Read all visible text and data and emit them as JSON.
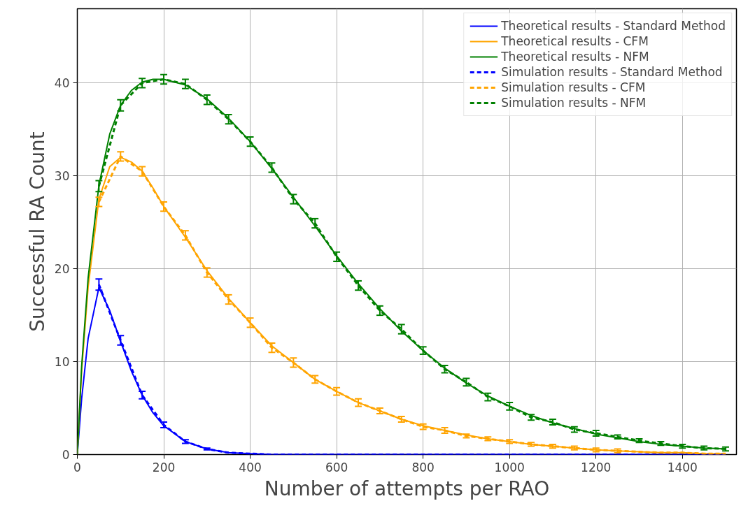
{
  "chart_data": {
    "type": "line",
    "xlabel": "Number of attempts per RAO",
    "ylabel": "Successful RA Count",
    "xlim": [
      0,
      1525
    ],
    "ylim": [
      0,
      48
    ],
    "xticks": [
      0,
      200,
      400,
      600,
      800,
      1000,
      1200,
      1400
    ],
    "yticks": [
      0,
      10,
      20,
      30,
      40
    ],
    "grid": true,
    "legend": "top right",
    "series": [
      {
        "name": "Theoretical results - Standard Method",
        "color": "#0000ff",
        "line_style": "solid",
        "x": [
          0,
          10,
          25,
          50,
          75,
          100,
          125,
          150,
          175,
          200,
          250,
          300,
          350,
          400,
          450,
          500,
          550,
          600,
          650,
          700,
          750,
          800,
          850,
          900,
          950,
          1000,
          1050,
          1100,
          1150,
          1200,
          1250,
          1300,
          1350,
          1400,
          1450,
          1500
        ],
        "values": [
          0,
          6,
          12.5,
          18,
          15.5,
          12.2,
          9,
          6.4,
          4.5,
          3.1,
          1.4,
          0.6,
          0.2,
          0.1,
          0,
          0,
          0,
          0,
          0,
          0,
          0,
          0,
          0,
          0,
          0,
          0,
          0,
          0,
          0,
          0,
          0,
          0,
          0,
          0,
          0,
          0
        ]
      },
      {
        "name": "Theoretical results - CFM",
        "color": "#ffa500",
        "line_style": "solid",
        "x": [
          0,
          10,
          25,
          50,
          75,
          100,
          125,
          150,
          175,
          200,
          250,
          300,
          350,
          400,
          450,
          500,
          550,
          600,
          650,
          700,
          750,
          800,
          850,
          900,
          950,
          1000,
          1050,
          1100,
          1150,
          1200,
          1250,
          1300,
          1350,
          1400,
          1450,
          1500
        ],
        "values": [
          0,
          9,
          18,
          27.5,
          31,
          32,
          31.5,
          30.5,
          28.7,
          26.7,
          23.4,
          19.8,
          16.8,
          14.2,
          11.7,
          9.9,
          8.1,
          6.8,
          5.6,
          4.7,
          3.8,
          3.1,
          2.6,
          2.1,
          1.7,
          1.4,
          1.1,
          0.9,
          0.7,
          0.5,
          0.4,
          0.3,
          0.2,
          0.2,
          0.1,
          0.1
        ]
      },
      {
        "name": "Theoretical results - NFM",
        "color": "#008000",
        "line_style": "solid",
        "x": [
          0,
          10,
          25,
          50,
          75,
          100,
          125,
          150,
          175,
          200,
          250,
          300,
          350,
          400,
          450,
          500,
          550,
          600,
          650,
          700,
          750,
          800,
          850,
          900,
          950,
          1000,
          1050,
          1100,
          1150,
          1200,
          1250,
          1300,
          1350,
          1400,
          1450,
          1500
        ],
        "values": [
          0,
          9.5,
          19,
          29,
          34.5,
          37.6,
          39.2,
          40.1,
          40.4,
          40.4,
          39.8,
          38.3,
          36.2,
          33.7,
          30.8,
          27.7,
          24.6,
          21.4,
          18.4,
          15.7,
          13.3,
          11.2,
          9.3,
          7.7,
          6.3,
          5.2,
          4.2,
          3.4,
          2.8,
          2.2,
          1.8,
          1.4,
          1.1,
          0.9,
          0.7,
          0.6
        ]
      },
      {
        "name": "Simulation results - Standard Method",
        "color": "#0000ff",
        "line_style": "dashed",
        "x": [
          50,
          100,
          150,
          200,
          250,
          300,
          350,
          400,
          450,
          500,
          550,
          600,
          650,
          700,
          750,
          800,
          850,
          900,
          950,
          1000,
          1050,
          1100,
          1150,
          1200,
          1250,
          1300,
          1350,
          1400,
          1450,
          1500
        ],
        "values": [
          18.3,
          12.3,
          6.4,
          3.2,
          1.4,
          0.6,
          0.2,
          0.1,
          0,
          0,
          0,
          0,
          0,
          0,
          0,
          0,
          0,
          0,
          0,
          0,
          0,
          0,
          0,
          0,
          0,
          0,
          0,
          0,
          0,
          0
        ],
        "errors": [
          0.6,
          0.5,
          0.4,
          0.3,
          0.2,
          0.1,
          null,
          null,
          null,
          null,
          null,
          null,
          null,
          null,
          null,
          null,
          null,
          null,
          null,
          null,
          null,
          null,
          null,
          null,
          null,
          null,
          null,
          null,
          null,
          null
        ]
      },
      {
        "name": "Simulation results - CFM",
        "color": "#ffa400",
        "line_style": "dashed",
        "x": [
          50,
          100,
          150,
          200,
          250,
          300,
          350,
          400,
          450,
          500,
          550,
          600,
          650,
          700,
          750,
          800,
          850,
          900,
          950,
          1000,
          1050,
          1100,
          1150,
          1200,
          1250,
          1300,
          1350,
          1400,
          1450,
          1500
        ],
        "values": [
          27.2,
          32.1,
          30.5,
          26.7,
          23.6,
          19.6,
          16.7,
          14.2,
          11.5,
          9.9,
          8.1,
          6.8,
          5.6,
          4.7,
          3.8,
          3.0,
          2.6,
          2.0,
          1.7,
          1.4,
          1.1,
          0.9,
          0.7,
          0.5,
          0.4,
          0.3,
          0.2,
          0.2,
          0.1,
          0.1
        ],
        "errors": [
          0.5,
          0.5,
          0.5,
          0.5,
          0.5,
          0.5,
          0.5,
          0.5,
          0.5,
          0.5,
          0.4,
          0.4,
          0.4,
          0.3,
          0.3,
          0.3,
          0.3,
          0.2,
          0.2,
          0.2,
          0.2,
          0.2,
          0.2,
          0.2,
          0.2,
          null,
          null,
          null,
          null,
          null
        ]
      },
      {
        "name": "Simulation results - NFM",
        "color": "#008000",
        "line_style": "dashed",
        "x": [
          50,
          100,
          150,
          200,
          250,
          300,
          350,
          400,
          450,
          500,
          550,
          600,
          650,
          700,
          750,
          800,
          850,
          900,
          950,
          1000,
          1050,
          1100,
          1150,
          1200,
          1250,
          1300,
          1350,
          1400,
          1450,
          1500
        ],
        "values": [
          28.9,
          37.6,
          40.0,
          40.4,
          39.9,
          38.2,
          36.1,
          33.7,
          30.9,
          27.5,
          24.9,
          21.3,
          18.2,
          15.5,
          13.5,
          11.2,
          9.2,
          7.8,
          6.2,
          5.2,
          4.0,
          3.5,
          2.7,
          2.3,
          1.9,
          1.5,
          1.2,
          0.9,
          0.7,
          0.6
        ],
        "errors": [
          0.6,
          0.6,
          0.5,
          0.5,
          0.5,
          0.5,
          0.5,
          0.5,
          0.5,
          0.5,
          0.5,
          0.5,
          0.5,
          0.5,
          0.5,
          0.4,
          0.4,
          0.4,
          0.4,
          0.4,
          0.3,
          0.3,
          0.3,
          0.3,
          0.2,
          0.2,
          0.2,
          0.2,
          0.2,
          0.2
        ]
      }
    ]
  }
}
